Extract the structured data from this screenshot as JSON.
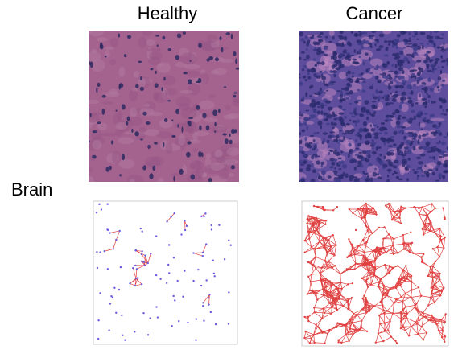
{
  "columns": [
    "Healthy",
    "Cancer"
  ],
  "rows": [
    "Brain"
  ]
}
